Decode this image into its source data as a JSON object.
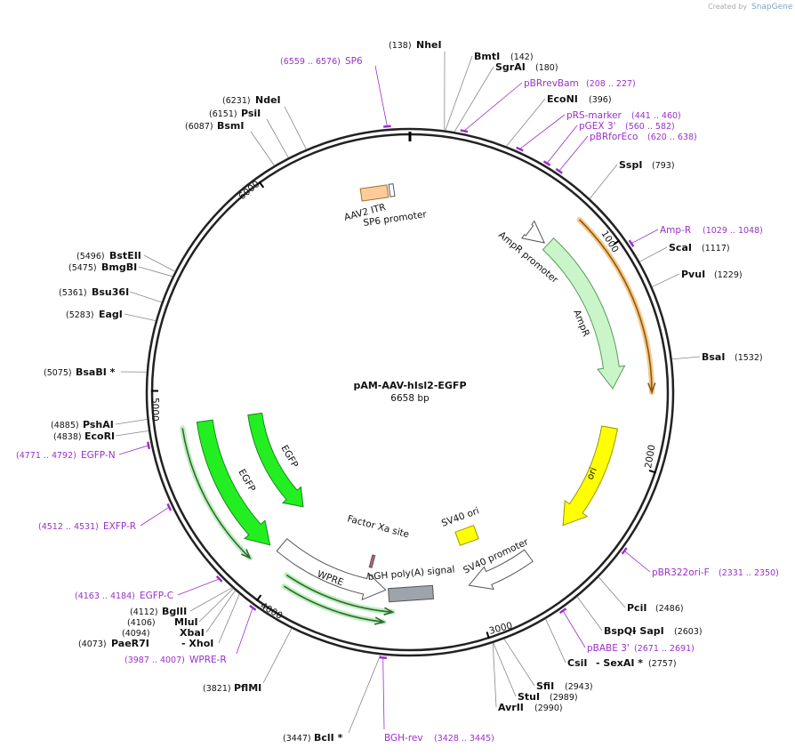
{
  "header": {
    "credit": "Created by",
    "brand": "SnapGene"
  },
  "map": {
    "name": "pAM-AAV-hIsl2-EGFP",
    "size": "6658 bp"
  },
  "sites": [
    {
      "position": "(138)",
      "name": "NheI"
    },
    {
      "position": "(142)",
      "name": "BmtI"
    },
    {
      "position": "(180)",
      "name": "SgrAI"
    },
    {
      "position": "(396)",
      "name": "EcoNI"
    },
    {
      "position": "(793)",
      "name": "SspI"
    },
    {
      "position": "(1117)",
      "name": "ScaI"
    },
    {
      "position": "(1229)",
      "name": "PvuI"
    },
    {
      "position": "(1532)",
      "name": "BsaI"
    },
    {
      "position": "(2486)",
      "name": "PciI"
    },
    {
      "position": "(2603)",
      "name": "BspQI",
      "extra": "- SapI"
    },
    {
      "position": "(2757)",
      "name": "CsiI",
      "extra": "- SexAI *"
    },
    {
      "position": "(2943)",
      "name": "SfiI"
    },
    {
      "position": "(2989)",
      "name": "StuI"
    },
    {
      "position": "(2990)",
      "name": "AvrII"
    },
    {
      "position": "(3447)",
      "name": "BclI *"
    },
    {
      "position": "(3821)",
      "name": "PflMI"
    },
    {
      "position": "(4073)",
      "name": "PaeR7I",
      "extra": "- XhoI"
    },
    {
      "position": "(4094)",
      "name": "XbaI"
    },
    {
      "position": "(4106)",
      "name": "MluI"
    },
    {
      "position": "(4112)",
      "name": "BglII"
    },
    {
      "position": "(4838)",
      "name": "EcoRI"
    },
    {
      "position": "(4885)",
      "name": "PshAI"
    },
    {
      "position": "(5075)",
      "name": "BsaBI *"
    },
    {
      "position": "(5283)",
      "name": "EagI"
    },
    {
      "position": "(5361)",
      "name": "Bsu36I"
    },
    {
      "position": "(5475)",
      "name": "BmgBI"
    },
    {
      "position": "(5496)",
      "name": "BstEII"
    },
    {
      "position": "(6087)",
      "name": "BsmI"
    },
    {
      "position": "(6151)",
      "name": "PsiI"
    },
    {
      "position": "(6231)",
      "name": "NdeI"
    }
  ],
  "primers": [
    {
      "name": "SP6",
      "range": "(6559 .. 6576)"
    },
    {
      "name": "pBRrevBam",
      "range": "(208 .. 227)"
    },
    {
      "name": "pRS-marker",
      "range": "(441 .. 460)"
    },
    {
      "name": "pGEX 3'",
      "range": "(560 .. 582)"
    },
    {
      "name": "pBRforEco",
      "range": "(620 .. 638)"
    },
    {
      "name": "Amp-R",
      "range": "(1029 .. 1048)"
    },
    {
      "name": "pBR322ori-F",
      "range": "(2331 .. 2350)"
    },
    {
      "name": "pBABE 3'",
      "range": "(2671 .. 2691)"
    },
    {
      "name": "BGH-rev",
      "range": "(3428 .. 3445)"
    },
    {
      "name": "WPRE-R",
      "range": "(3987 .. 4007)"
    },
    {
      "name": "EGFP-C",
      "range": "(4163 .. 4184)"
    },
    {
      "name": "EXFP-R",
      "range": "(4512 .. 4531)"
    },
    {
      "name": "EGFP-N",
      "range": "(4771 .. 4792)"
    }
  ],
  "features": [
    {
      "label": "AAV2 ITR"
    },
    {
      "label": "SP6 promoter"
    },
    {
      "label": "AmpR promoter"
    },
    {
      "label": "AmpR"
    },
    {
      "label": "ori"
    },
    {
      "label": "EGFP"
    },
    {
      "label": "EGFP"
    },
    {
      "label": "Factor Xa site"
    },
    {
      "label": "WPRE"
    },
    {
      "label": "bGH poly(A) signal"
    },
    {
      "label": "SV40 ori"
    },
    {
      "label": "SV40 promoter"
    }
  ],
  "ruler": [
    "1000",
    "2000",
    "3000",
    "4000",
    "5000",
    "6000"
  ]
}
